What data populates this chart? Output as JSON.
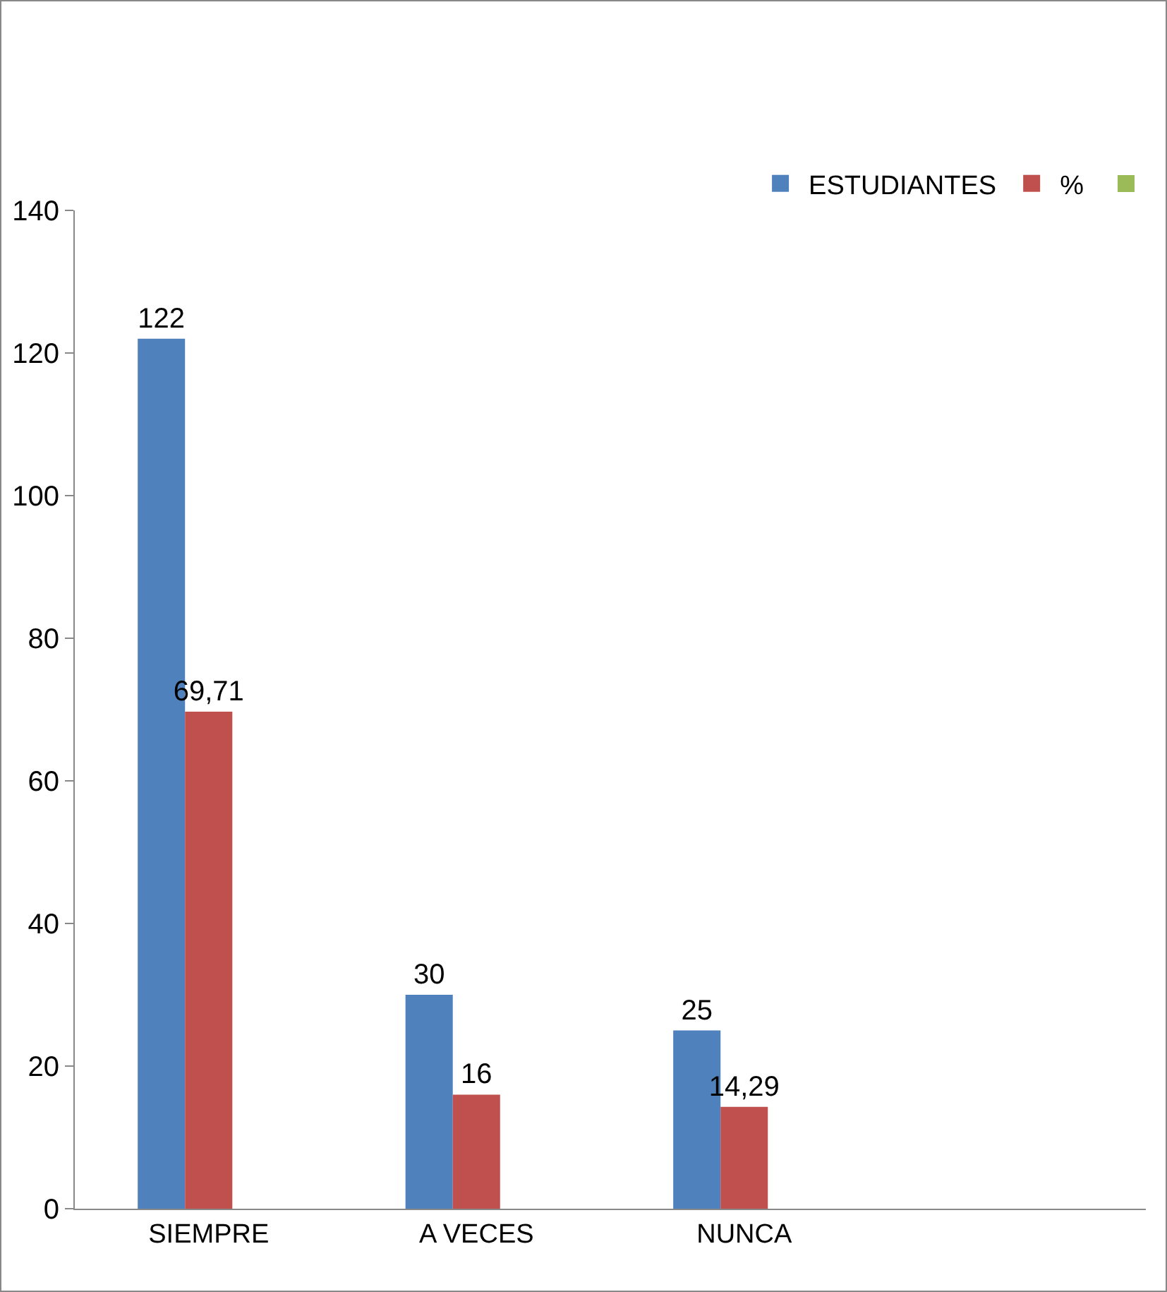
{
  "chart_data": {
    "type": "bar",
    "categories": [
      "SIEMPRE",
      "A VECES",
      "NUNCA",
      null
    ],
    "series": [
      {
        "name": "ESTUDIANTES",
        "color": "#4f81bd",
        "values": [
          122,
          30,
          25,
          null
        ],
        "value_labels": [
          "122",
          "30",
          "25",
          null
        ]
      },
      {
        "name": "%",
        "color": "#c0504d",
        "values": [
          69.71,
          16,
          14.29,
          null
        ],
        "value_labels": [
          "69,71",
          "16",
          "14,29",
          null
        ]
      },
      {
        "color": "#9bbb59",
        "values": [
          null,
          null,
          null,
          null
        ]
      }
    ],
    "ylim": [
      0,
      140
    ],
    "yticks": [
      0,
      20,
      40,
      60,
      80,
      100,
      120,
      140
    ],
    "grid": false,
    "legend": "top right"
  }
}
